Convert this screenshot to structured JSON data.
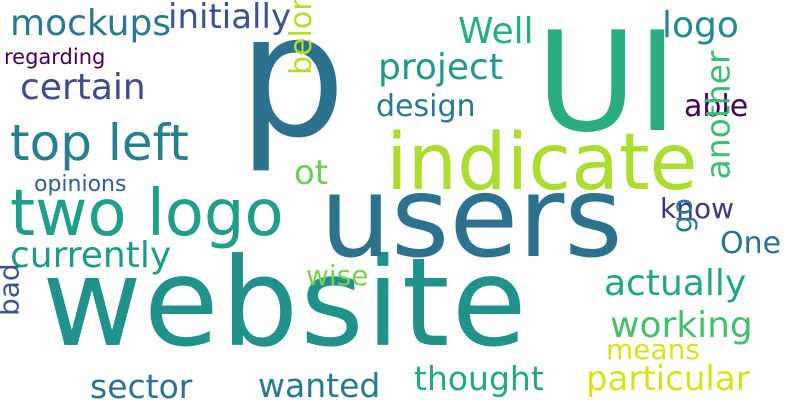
{
  "words": [
    {
      "text": "website",
      "color": "#21918c",
      "orientation": "horizontal"
    },
    {
      "text": "users",
      "color": "#2c728e",
      "orientation": "horizontal"
    },
    {
      "text": "p",
      "color": "#2c728e",
      "orientation": "horizontal"
    },
    {
      "text": "UI",
      "color": "#28ae80",
      "orientation": "horizontal"
    },
    {
      "text": "indicate",
      "color": "#addc30",
      "orientation": "horizontal"
    },
    {
      "text": "two logo",
      "color": "#1f9e89",
      "orientation": "horizontal"
    },
    {
      "text": "top left",
      "color": "#277f8e",
      "orientation": "horizontal"
    },
    {
      "text": "mockups",
      "color": "#2a788e",
      "orientation": "horizontal"
    },
    {
      "text": "initially",
      "color": "#3b528b",
      "orientation": "horizontal"
    },
    {
      "text": "regarding",
      "color": "#440154",
      "orientation": "horizontal"
    },
    {
      "text": "certain",
      "color": "#3e4a89",
      "orientation": "horizontal"
    },
    {
      "text": "belong",
      "color": "#b5de2b",
      "orientation": "vertical"
    },
    {
      "text": "Well",
      "color": "#26ad81",
      "orientation": "horizontal"
    },
    {
      "text": "project",
      "color": "#1f9a8a",
      "orientation": "horizontal"
    },
    {
      "text": "design",
      "color": "#2a788e",
      "orientation": "horizontal"
    },
    {
      "text": "logo",
      "color": "#23898e",
      "orientation": "horizontal"
    },
    {
      "text": "able",
      "color": "#440154",
      "orientation": "horizontal"
    },
    {
      "text": "another",
      "color": "#3dbc74",
      "orientation": "vertical"
    },
    {
      "text": "ot",
      "color": "#6ccd5a",
      "orientation": "horizontal"
    },
    {
      "text": "opinions",
      "color": "#365d8d",
      "orientation": "horizontal"
    },
    {
      "text": "know",
      "color": "#46337e",
      "orientation": "horizontal"
    },
    {
      "text": "go",
      "color": "#2a788e",
      "orientation": "vertical"
    },
    {
      "text": "One",
      "color": "#2d708e",
      "orientation": "horizontal"
    },
    {
      "text": "currently",
      "color": "#1f9a8a",
      "orientation": "horizontal"
    },
    {
      "text": "wise",
      "color": "#7ad151",
      "orientation": "horizontal"
    },
    {
      "text": "actually",
      "color": "#21a685",
      "orientation": "horizontal"
    },
    {
      "text": "working",
      "color": "#44bf70",
      "orientation": "horizontal"
    },
    {
      "text": "means",
      "color": "#d8e219",
      "orientation": "horizontal"
    },
    {
      "text": "bad",
      "color": "#3b528b",
      "orientation": "vertical"
    },
    {
      "text": "sector",
      "color": "#2c728e",
      "orientation": "horizontal"
    },
    {
      "text": "wanted",
      "color": "#2a788e",
      "orientation": "horizontal"
    },
    {
      "text": "thought",
      "color": "#22a884",
      "orientation": "horizontal"
    },
    {
      "text": "particular",
      "color": "#d8e219",
      "orientation": "horizontal"
    }
  ]
}
